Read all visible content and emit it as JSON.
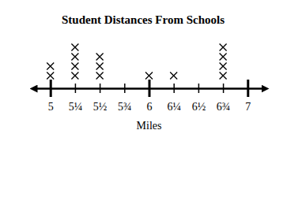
{
  "chart_data": {
    "type": "dot_plot",
    "title": "Student Distances From Schools",
    "xlabel": "Miles",
    "x": [
      5,
      5.25,
      5.5,
      6,
      6.25,
      6.75
    ],
    "values": [
      2,
      4,
      3,
      1,
      1,
      4
    ],
    "xlim": [
      4.85,
      7.15
    ],
    "xticks": [
      5,
      {
        "value": 5.25,
        "label": "5¼"
      },
      {
        "value": 5.5,
        "label": "5½"
      },
      {
        "value": 5.75,
        "label": "5¾"
      },
      6,
      {
        "value": 6.25,
        "label": "6¼"
      },
      {
        "value": 6.5,
        "label": "6½"
      },
      {
        "value": 6.75,
        "label": "6¾"
      },
      7
    ],
    "marker": "x",
    "color": "#000000",
    "tick_labels": "x"
  }
}
